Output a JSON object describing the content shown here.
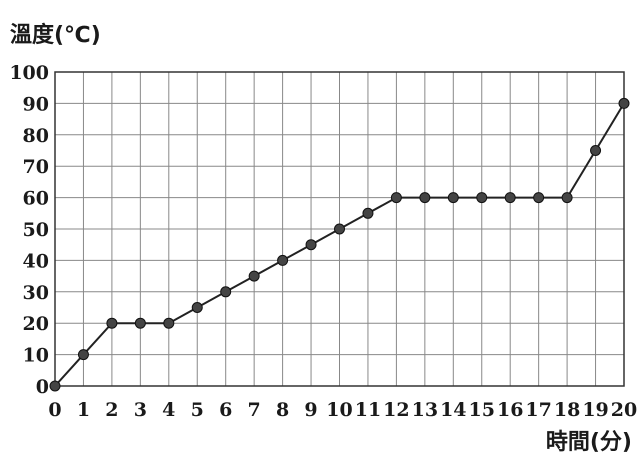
{
  "chart_data": {
    "type": "line",
    "title": "",
    "xlabel": "時間(分)",
    "ylabel": "溫度(℃)",
    "xlim": [
      0,
      20
    ],
    "ylim": [
      0,
      100
    ],
    "x_ticks": [
      "0",
      "1",
      "2",
      "3",
      "4",
      "5",
      "6",
      "7",
      "8",
      "9",
      "10",
      "11",
      "12",
      "13",
      "14",
      "15",
      "16",
      "17",
      "18",
      "19",
      "20"
    ],
    "y_ticks": [
      "0",
      "10",
      "20",
      "30",
      "40",
      "50",
      "60",
      "70",
      "80",
      "90",
      "100"
    ],
    "grid": true,
    "x": [
      0,
      1,
      2,
      3,
      4,
      5,
      6,
      7,
      8,
      9,
      10,
      11,
      12,
      13,
      14,
      15,
      16,
      17,
      18,
      19,
      20
    ],
    "series": [
      {
        "values": [
          0,
          10,
          20,
          20,
          20,
          25,
          30,
          35,
          40,
          45,
          50,
          55,
          60,
          60,
          60,
          60,
          60,
          60,
          60,
          75,
          90
        ]
      }
    ],
    "colors": {
      "line": "#222222",
      "marker": "#444444",
      "grid": "#888888"
    }
  }
}
